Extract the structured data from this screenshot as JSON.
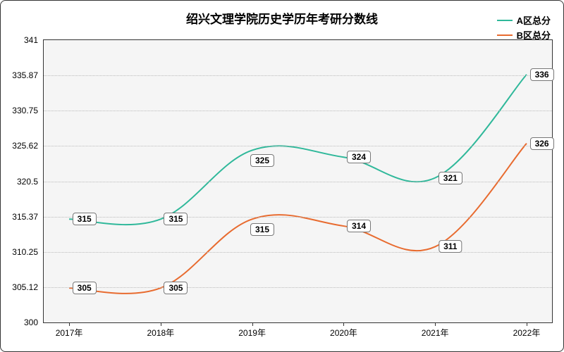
{
  "title": "绍兴文理学院历史学历年考研分数线",
  "title_fontsize": 17,
  "background_color": "#ffffff",
  "plot_background_color": "#f5f5f5",
  "grid_color": "#bbbbbb",
  "border_color": "#333333",
  "x": {
    "labels": [
      "2017年",
      "2018年",
      "2019年",
      "2020年",
      "2021年",
      "2022年"
    ],
    "positions_pct": [
      5,
      23,
      41,
      59,
      77,
      95
    ]
  },
  "y": {
    "min": 300,
    "max": 341,
    "ticks": [
      300,
      305.12,
      310.25,
      315.37,
      320.5,
      325.62,
      330.75,
      335.87,
      341
    ]
  },
  "series": [
    {
      "name": "A区总分",
      "color": "#2fb89a",
      "values": [
        315,
        315,
        325,
        324,
        321,
        336
      ],
      "label_offset_x_pct": [
        3,
        3,
        2,
        3,
        3,
        3
      ],
      "label_offset_y_pt": [
        0,
        0,
        -1.5,
        0,
        0,
        0
      ]
    },
    {
      "name": "B区总分",
      "color": "#e86b2f",
      "values": [
        305,
        305,
        315,
        314,
        311,
        326
      ],
      "label_offset_x_pct": [
        3,
        3,
        2,
        3,
        3,
        3
      ],
      "label_offset_y_pt": [
        0,
        0,
        -1.5,
        0,
        0,
        0
      ]
    }
  ],
  "legend": {
    "fontsize": 13
  },
  "line_width": 2,
  "label_fontsize": 12
}
